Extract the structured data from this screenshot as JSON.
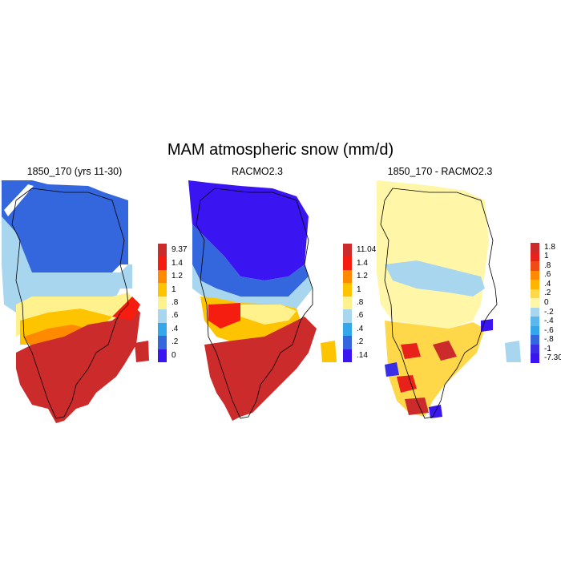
{
  "title": "MAM atmospheric snow (mm/d)",
  "panels": [
    {
      "title": "1850_170 (yrs 11-30)",
      "colorbar": {
        "labels": [
          "9.37",
          "1.4",
          "1.2",
          "1",
          ".8",
          ".6",
          ".4",
          ".2",
          "0"
        ],
        "colors": [
          "#cc2b2b",
          "#f51c10",
          "#ff8a00",
          "#ffc400",
          "#fff28c",
          "#a8d6ef",
          "#34a6ea",
          "#3466dd",
          "#3b14f2"
        ]
      }
    },
    {
      "title": "RACMO2.3",
      "colorbar": {
        "labels": [
          "11.04",
          "1.4",
          "1.2",
          "1",
          ".8",
          ".6",
          ".4",
          ".2",
          ".14"
        ],
        "colors": [
          "#cc2b2b",
          "#f51c10",
          "#ff8a00",
          "#ffc400",
          "#fff28c",
          "#a8d6ef",
          "#34a6ea",
          "#3466dd",
          "#3b14f2"
        ]
      }
    },
    {
      "title": "1850_170 - RACMO2.3",
      "colorbar": {
        "labels": [
          "1.8",
          "1",
          ".8",
          ".6",
          ".4",
          ".2",
          "0",
          "-.2",
          "-.4",
          "-.6",
          "-.8",
          "-1",
          "-7.30"
        ],
        "colors": [
          "#cc2b2b",
          "#e8211a",
          "#f04a16",
          "#ff8a00",
          "#ffb400",
          "#ffd84a",
          "#fff6a8",
          "#a8d6ef",
          "#5bb8ef",
          "#34a6ea",
          "#3466dd",
          "#3a2fe6",
          "#3b14f2"
        ]
      }
    }
  ]
}
